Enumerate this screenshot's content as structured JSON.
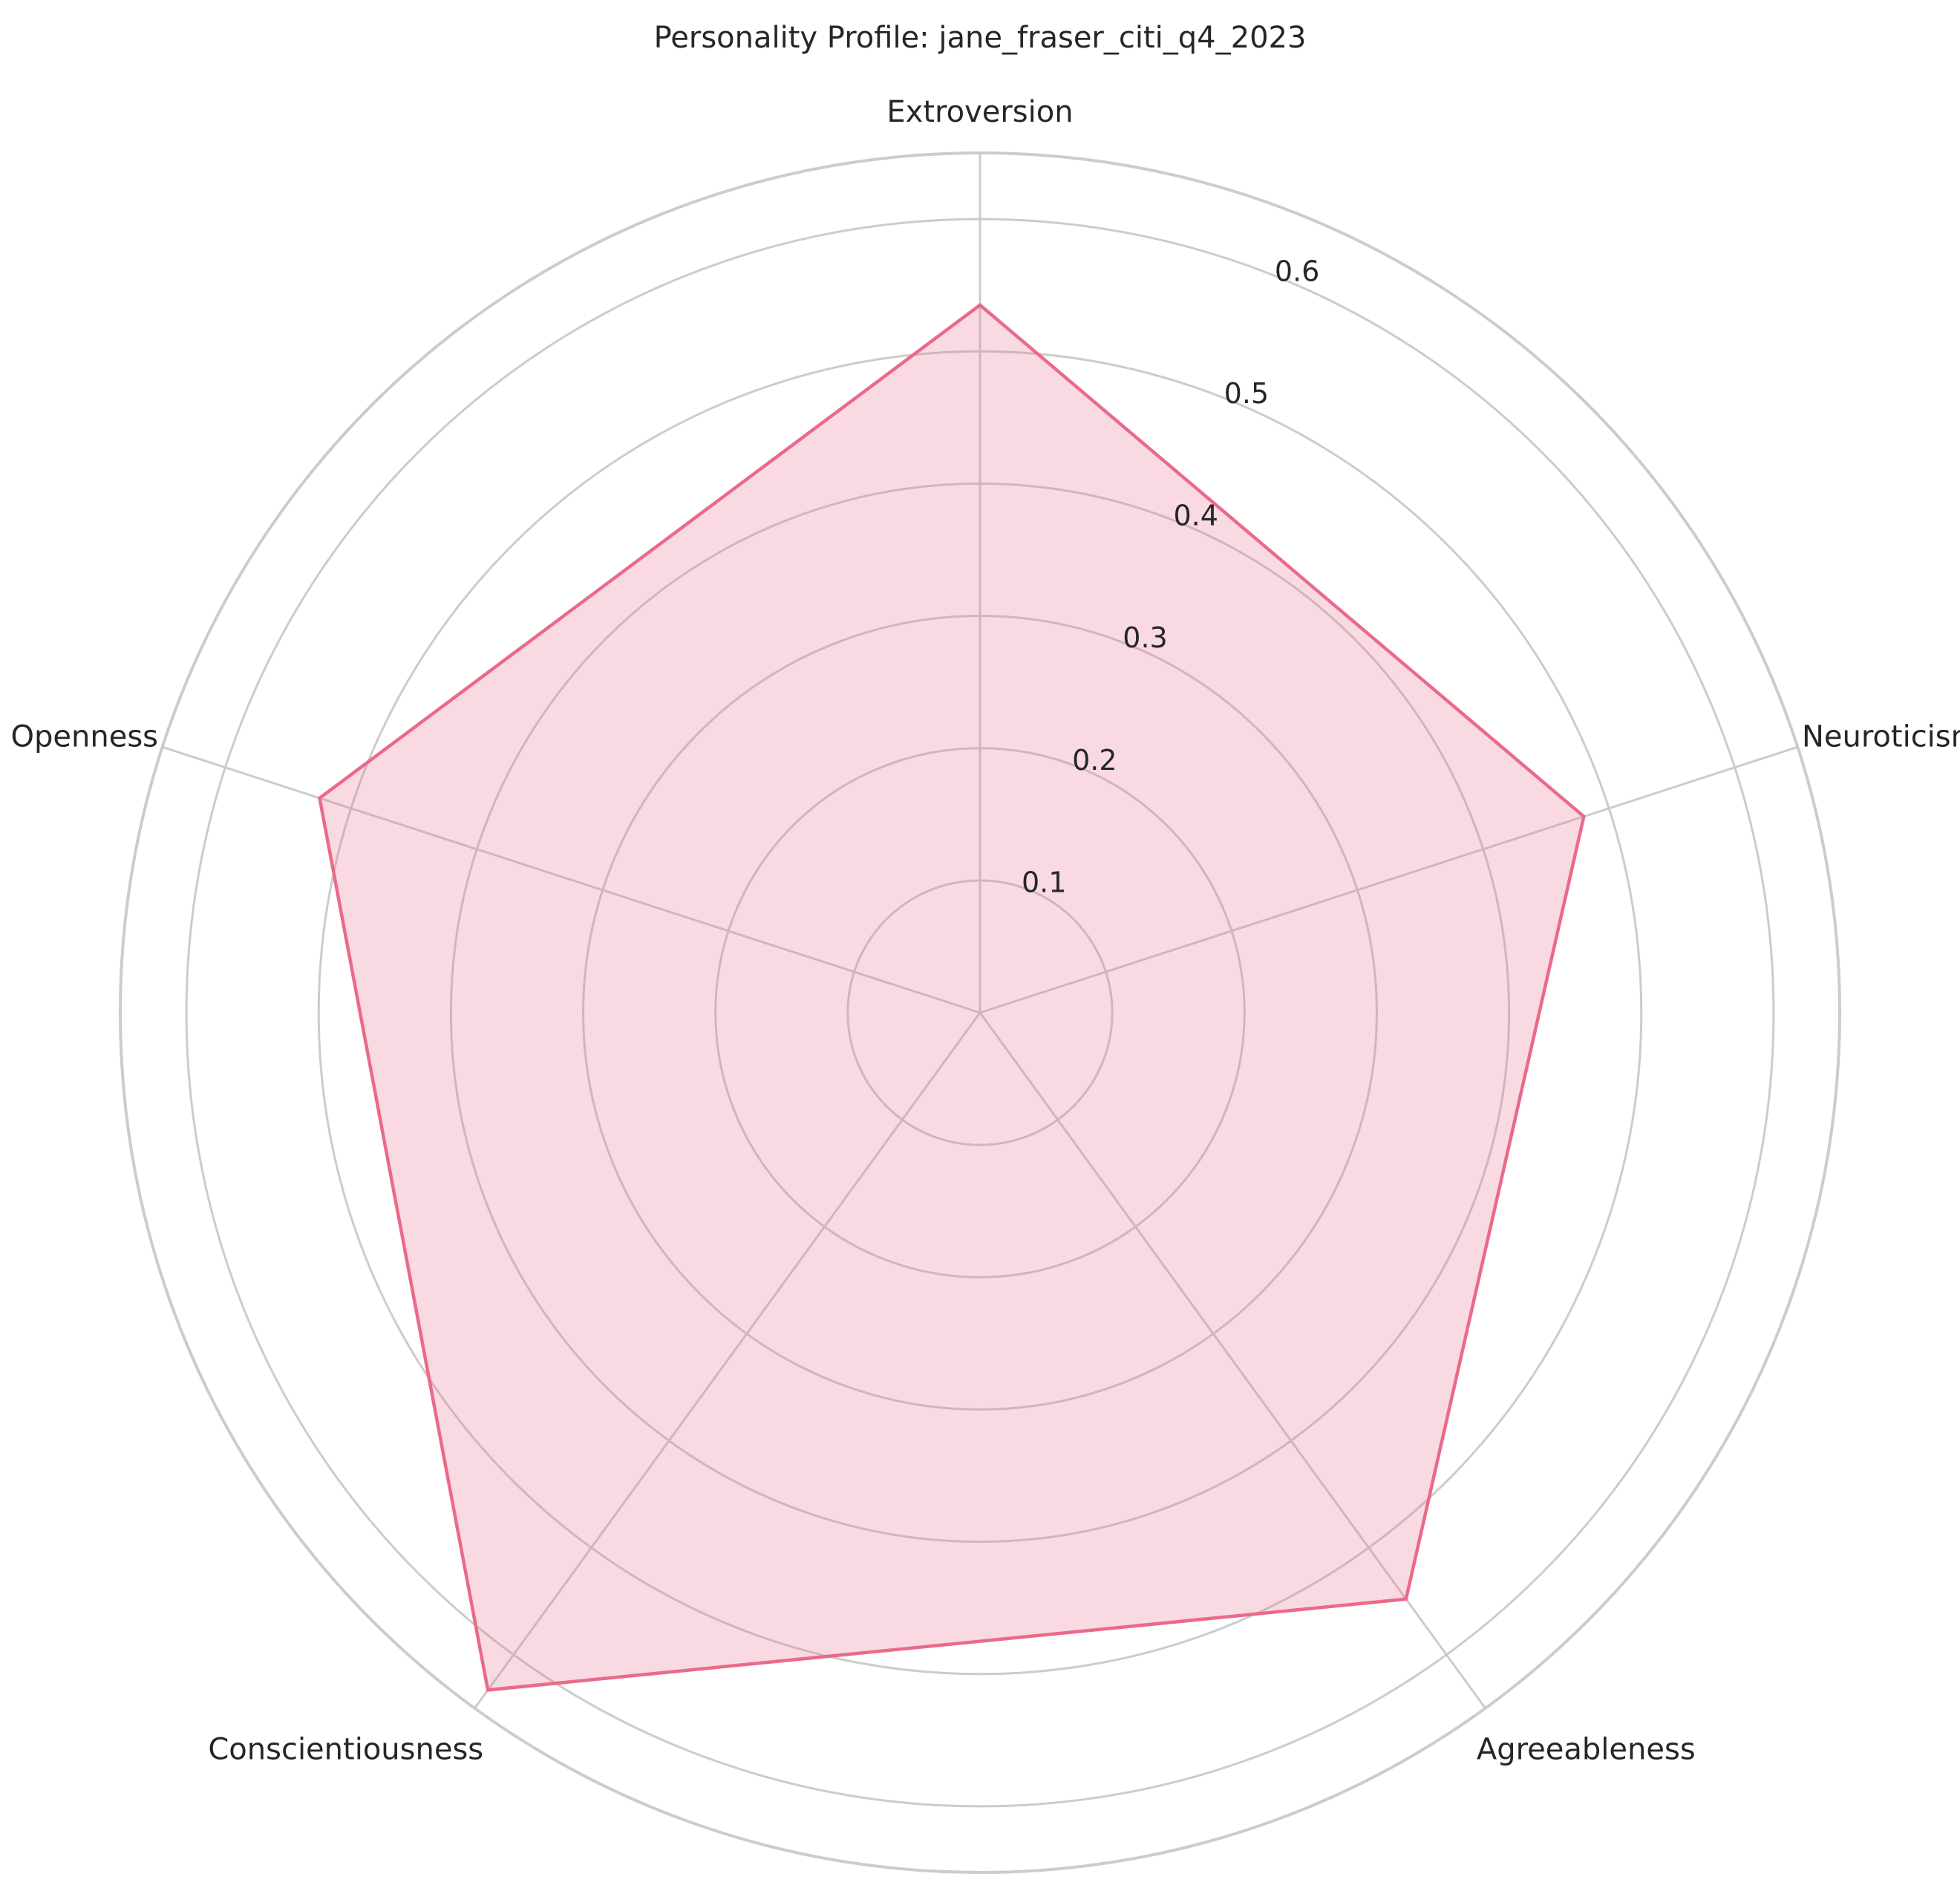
{
  "chart_data": {
    "type": "radar",
    "title": "Personality Profile: jane_fraser_citi_q4_2023",
    "axes": [
      "Extroversion",
      "Neuroticism",
      "Agreeableness",
      "Conscientiousness",
      "Openness"
    ],
    "series": [
      {
        "values": [
          0.535,
          0.48,
          0.548,
          0.633,
          0.525
        ]
      }
    ],
    "rmax": 0.65,
    "radial_ticks": [
      0.1,
      0.2,
      0.3,
      0.4,
      0.5,
      0.6
    ],
    "radial_tick_labels": [
      "0.1",
      "0.2",
      "0.3",
      "0.4",
      "0.5",
      "0.6"
    ],
    "grid": true,
    "colors": {
      "line": "#ea6a8a",
      "fill": "#ea6a8a",
      "grid": "#cccccc",
      "text": "#262626"
    }
  }
}
